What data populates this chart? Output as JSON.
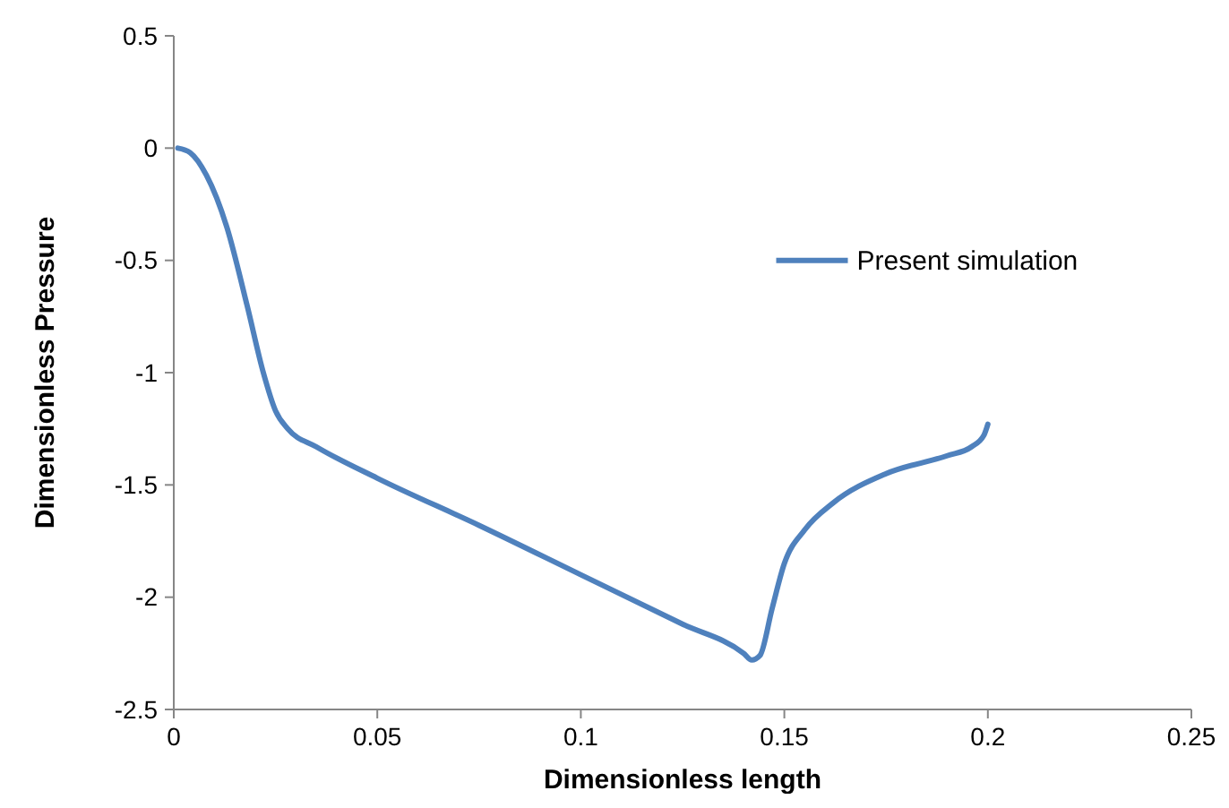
{
  "chart_data": {
    "type": "line",
    "xlabel": "Dimensionless length",
    "ylabel": "Dimensionless Pressure",
    "xlim": [
      0,
      0.25
    ],
    "xticks": [
      0,
      0.05,
      0.1,
      0.15,
      0.2,
      0.25
    ],
    "ylim": [
      -2.5,
      0.5
    ],
    "yticks": [
      -2.5,
      -2,
      -1.5,
      -1,
      -0.5,
      0,
      0.5
    ],
    "grid": false,
    "legend": "right",
    "marker": "none",
    "line_style": "solid",
    "series": [
      {
        "name": "Present simulation",
        "color": "#4f81bd",
        "x": [
          0.001,
          0.004,
          0.008,
          0.013,
          0.018,
          0.022,
          0.025,
          0.028,
          0.035,
          0.05,
          0.075,
          0.1,
          0.125,
          0.14,
          0.142,
          0.144,
          0.147,
          0.15,
          0.155,
          0.162,
          0.175,
          0.19,
          0.196,
          0.199,
          0.2
        ],
        "values": [
          0,
          -0.02,
          -0.12,
          -0.35,
          -0.7,
          -1.0,
          -1.17,
          -1.25,
          -1.33,
          -1.47,
          -1.68,
          -1.9,
          -2.12,
          -2.25,
          -2.28,
          -2.26,
          -2.05,
          -1.85,
          -1.7,
          -1.58,
          -1.45,
          -1.37,
          -1.33,
          -1.28,
          -1.23
        ]
      }
    ]
  }
}
